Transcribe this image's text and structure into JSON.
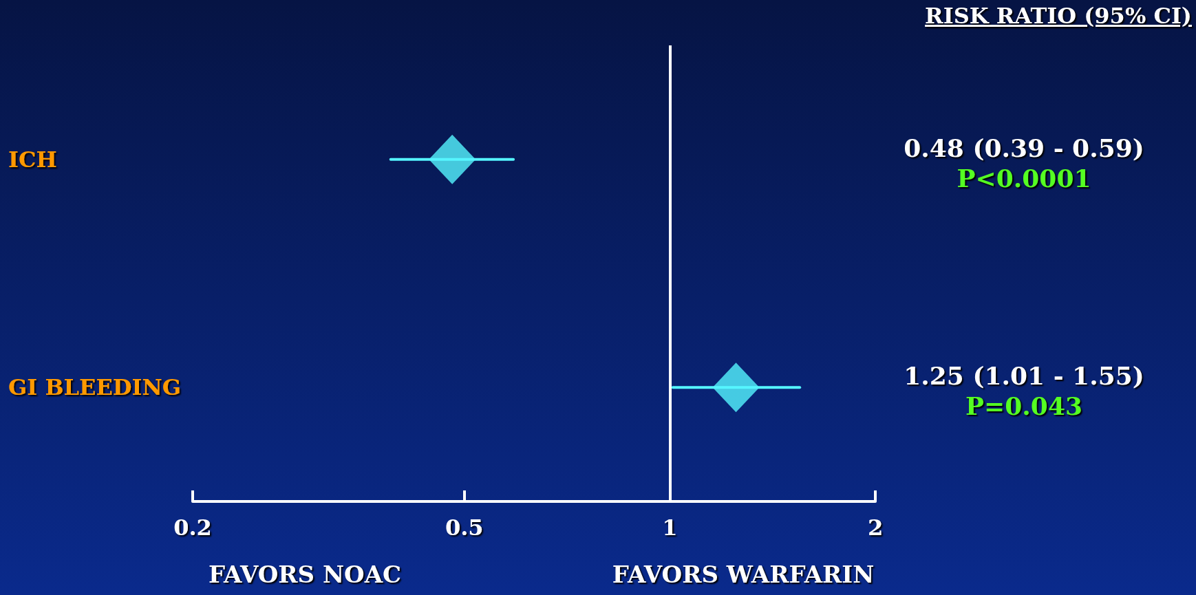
{
  "chart_data": {
    "type": "scatter",
    "title": "RISK RATIO (95% CI)",
    "orientation": "horizontal",
    "categories": [
      "ICH",
      "GI BLEEDING"
    ],
    "series": [
      {
        "color": "#55f5ff",
        "values": [
          0.48,
          1.25
        ],
        "errors": [
          [
            0.39,
            0.59
          ],
          [
            1.01,
            1.55
          ]
        ]
      }
    ],
    "xlim": [
      0.2,
      2
    ],
    "xticks": [
      0.2,
      0.5,
      1,
      2
    ],
    "log": "x",
    "marker": "diamond",
    "grid": false,
    "ref_lines": [
      {
        "axis": "x",
        "value": 1,
        "color": "#ffffff"
      }
    ],
    "annotations": [
      "0.48 (0.39 - 0.59)",
      "P<0.0001",
      "1.25 (1.01 - 1.55)",
      "P=0.043",
      "FAVORS NOAC",
      "FAVORS WARFARIN"
    ]
  }
}
